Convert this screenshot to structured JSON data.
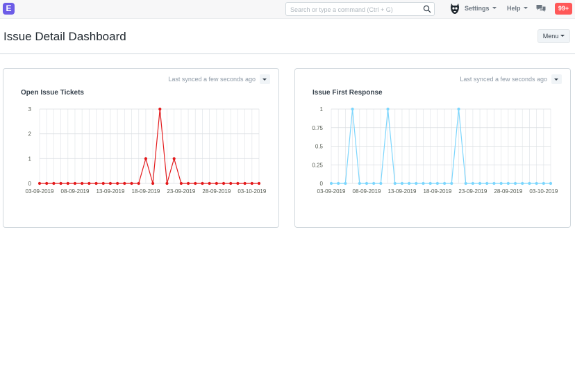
{
  "navbar": {
    "logo_letter": "E",
    "search_placeholder": "Search or type a command (Ctrl + G)",
    "settings_label": "Settings",
    "help_label": "Help",
    "notification_count": "99+"
  },
  "page": {
    "title": "Issue Detail Dashboard",
    "menu_label": "Menu"
  },
  "cards": [
    {
      "sync_text": "Last synced a few seconds ago",
      "title": "Open Issue Tickets"
    },
    {
      "sync_text": "Last synced a few seconds ago",
      "title": "Issue First Response"
    }
  ],
  "chart_data": [
    {
      "type": "line",
      "title": "Open Issue Tickets",
      "color": "#e31a1c",
      "x_start": "03-09-2019",
      "x_end": "03-10-2019",
      "x_tick_labels": [
        "03-09-2019",
        "08-09-2019",
        "13-09-2019",
        "18-09-2019",
        "23-09-2019",
        "28-09-2019",
        "03-10-2019"
      ],
      "y_ticks": [
        0,
        1,
        2,
        3
      ],
      "ylim": [
        0,
        3
      ],
      "values": [
        0,
        0,
        0,
        0,
        0,
        0,
        0,
        0,
        0,
        0,
        0,
        0,
        0,
        0,
        0,
        1,
        0,
        3,
        0,
        1,
        0,
        0,
        0,
        0,
        0,
        0,
        0,
        0,
        0,
        0,
        0,
        0
      ],
      "grid": true
    },
    {
      "type": "line",
      "title": "Issue First Response",
      "color": "#7cd6fd",
      "x_start": "03-09-2019",
      "x_end": "03-10-2019",
      "x_tick_labels": [
        "03-09-2019",
        "08-09-2019",
        "13-09-2019",
        "18-09-2019",
        "23-09-2019",
        "28-09-2019",
        "03-10-2019"
      ],
      "y_ticks": [
        0,
        0.25,
        0.5,
        0.75,
        1
      ],
      "ylim": [
        0,
        1
      ],
      "values": [
        0,
        0,
        0,
        1,
        0,
        0,
        0,
        0,
        1,
        0,
        0,
        0,
        0,
        0,
        0,
        0,
        0,
        0,
        1,
        0,
        0,
        0,
        0,
        0,
        0,
        0,
        0,
        0,
        0,
        0,
        0,
        0
      ],
      "grid": true
    }
  ]
}
